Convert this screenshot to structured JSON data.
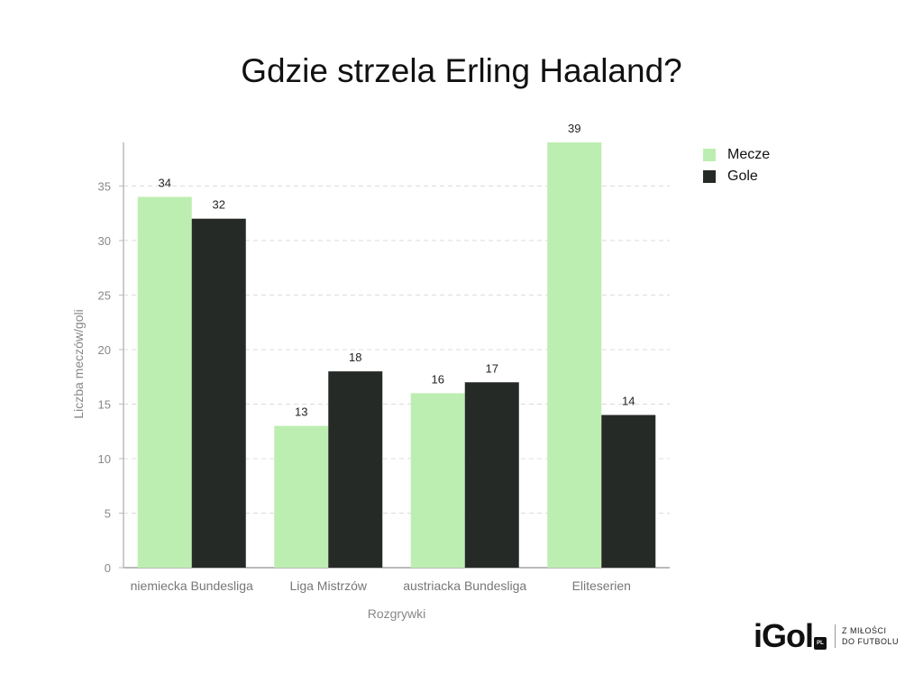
{
  "chart_data": {
    "type": "bar",
    "title": "Gdzie strzela Erling Haaland?",
    "xlabel": "Rozgrywki",
    "ylabel": "Liczba meczów/goli",
    "categories": [
      "niemiecka Bundesliga",
      "Liga Mistrzów",
      "austriacka Bundesliga",
      "Eliteserien"
    ],
    "series": [
      {
        "name": "Mecze",
        "values": [
          34,
          13,
          16,
          39
        ],
        "color": "#bdeeb1"
      },
      {
        "name": "Gole",
        "values": [
          32,
          18,
          17,
          14
        ],
        "color": "#262a26"
      }
    ],
    "ylim": [
      0,
      39
    ],
    "yticks": [
      0,
      5,
      10,
      15,
      20,
      25,
      30,
      35
    ],
    "grid": true,
    "legend_position": "top-right"
  },
  "brand": {
    "logo": "iGol",
    "badge": "PL",
    "tagline_line1": "Z MIŁOŚCI",
    "tagline_line2": "DO FUTBOLU"
  }
}
